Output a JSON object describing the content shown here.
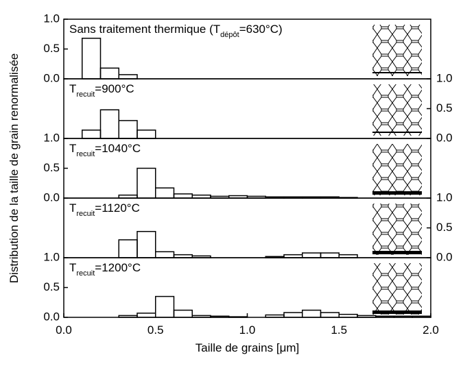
{
  "chart_data": [
    {
      "type": "histogram",
      "label": {
        "text": "Sans traitement thermique (T",
        "sub": "dépôt",
        "suffix": "=630°C)"
      },
      "bins": [
        0.1,
        0.2,
        0.3,
        0.4
      ],
      "values": [
        0.68,
        0.18,
        0.07
      ],
      "ylim": [
        0,
        1
      ],
      "yticks": [
        {
          "value": 0,
          "label": "0.0"
        },
        {
          "value": 0.5,
          "label": "0.5"
        },
        {
          "value": 1,
          "label": "1.0"
        }
      ],
      "ytick_side": "left",
      "xlim": [
        0,
        2
      ],
      "color": "#000000"
    },
    {
      "type": "histogram",
      "label": {
        "text": "T",
        "sub": "recuit",
        "suffix": "=900°C"
      },
      "bins": [
        0.1,
        0.2,
        0.3,
        0.4,
        0.5
      ],
      "values": [
        0.14,
        0.48,
        0.3,
        0.14
      ],
      "ylim": [
        0,
        1
      ],
      "yticks": [
        {
          "value": 0,
          "label": "0.0"
        },
        {
          "value": 0.5,
          "label": "0.5"
        },
        {
          "value": 1,
          "label": "1.0"
        }
      ],
      "ytick_side": "right",
      "xlim": [
        0,
        2
      ],
      "color": "#000000"
    },
    {
      "type": "histogram",
      "label": {
        "text": "T",
        "sub": "recuit",
        "suffix": "=1040°C"
      },
      "bins": [
        0.3,
        0.4,
        0.5,
        0.6,
        0.7,
        0.8,
        0.9,
        1.0,
        1.1,
        1.2,
        1.3,
        1.4,
        1.5,
        1.6
      ],
      "values": [
        0.05,
        0.5,
        0.17,
        0.07,
        0.05,
        0.03,
        0.04,
        0.03,
        0.02,
        0.02,
        0.02,
        0.02,
        0.01
      ],
      "ylim": [
        0,
        1
      ],
      "yticks": [
        {
          "value": 0,
          "label": "0.0"
        },
        {
          "value": 0.5,
          "label": "0.5"
        },
        {
          "value": 1,
          "label": "1.0"
        }
      ],
      "ytick_side": "left",
      "xlim": [
        0,
        2
      ],
      "color": "#000000"
    },
    {
      "type": "histogram",
      "label": {
        "text": "T",
        "sub": "recuit",
        "suffix": "=1120°C"
      },
      "bins": [
        0.3,
        0.4,
        0.5,
        0.6,
        0.7,
        0.8,
        0.9,
        1.0,
        1.1,
        1.2,
        1.3,
        1.4,
        1.5,
        1.6
      ],
      "values": [
        0.3,
        0.44,
        0.1,
        0.05,
        0.03,
        0,
        0,
        0,
        0.02,
        0.05,
        0.08,
        0.08,
        0.05
      ],
      "ylim": [
        0,
        1
      ],
      "yticks": [
        {
          "value": 0,
          "label": "0.0"
        },
        {
          "value": 0.5,
          "label": "0.5"
        },
        {
          "value": 1,
          "label": "1.0"
        }
      ],
      "ytick_side": "right",
      "xlim": [
        0,
        2
      ],
      "color": "#000000"
    },
    {
      "type": "histogram",
      "label": {
        "text": "T",
        "sub": "recuit",
        "suffix": "=1200°C"
      },
      "bins": [
        0.3,
        0.4,
        0.5,
        0.6,
        0.7,
        0.8,
        0.9,
        1.0,
        1.1,
        1.2,
        1.3,
        1.4,
        1.5,
        1.6,
        1.7,
        1.8,
        1.9,
        2.0
      ],
      "values": [
        0.03,
        0.07,
        0.35,
        0.12,
        0.03,
        0.02,
        0.01,
        0,
        0.04,
        0.08,
        0.12,
        0.08,
        0.05,
        0.03,
        0.02,
        0.02,
        0.02
      ],
      "ylim": [
        0,
        1
      ],
      "yticks": [
        {
          "value": 0,
          "label": "0.0"
        },
        {
          "value": 0.5,
          "label": "0.5"
        },
        {
          "value": 1,
          "label": "1.0"
        }
      ],
      "ytick_side": "left",
      "xlim": [
        0,
        2
      ],
      "xticks": [
        {
          "value": 0,
          "label": "0.0"
        },
        {
          "value": 0.5,
          "label": "0.5"
        },
        {
          "value": 1,
          "label": "1.0"
        },
        {
          "value": 1.5,
          "label": "1.5"
        },
        {
          "value": 2,
          "label": "2.0"
        }
      ],
      "xlabel": "Taille de grains [μm]",
      "ylabel": "Distribution de la taille de grain renormalisée",
      "color": "#000000"
    }
  ]
}
